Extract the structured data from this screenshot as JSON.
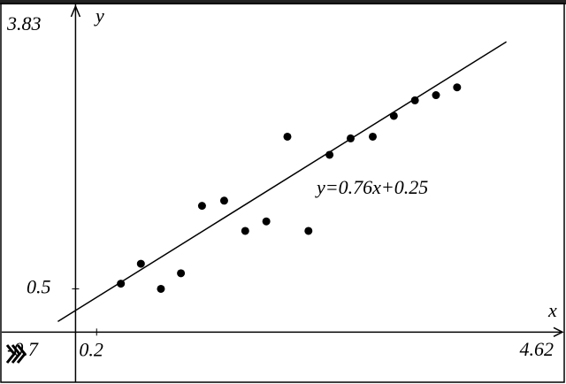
{
  "chart_data": {
    "type": "scatter",
    "x_label": "x",
    "y_label": "y",
    "x": [
      0.43,
      0.62,
      0.81,
      1.0,
      1.2,
      1.41,
      1.61,
      1.81,
      2.01,
      2.21,
      2.41,
      2.61,
      2.82,
      3.02,
      3.22,
      3.42,
      3.62
    ],
    "values": [
      0.56,
      0.79,
      0.5,
      0.68,
      1.46,
      1.52,
      1.17,
      1.28,
      2.26,
      1.17,
      2.05,
      2.24,
      2.26,
      2.5,
      2.68,
      2.74,
      2.83
    ],
    "color": "#000000",
    "xlim": [
      -0.7,
      4.62
    ],
    "ylim": [
      -0.58,
      3.83
    ],
    "xticks": [
      0.2
    ],
    "yticks": [
      0.5
    ],
    "fit": {
      "slope": 0.76,
      "intercept": 0.25,
      "label": "y=0.76x+0.25"
    }
  }
}
